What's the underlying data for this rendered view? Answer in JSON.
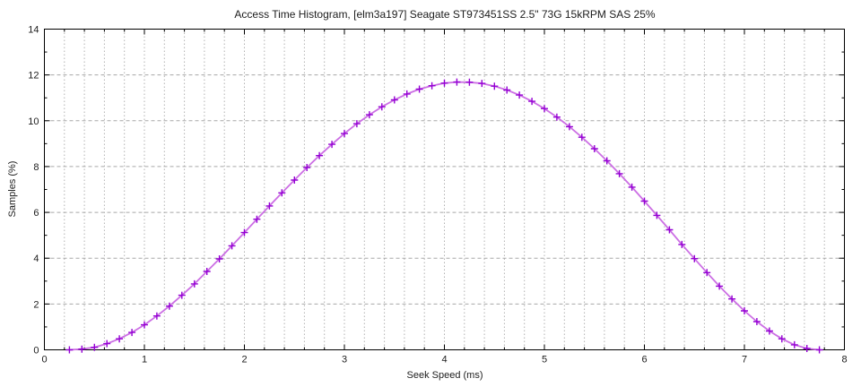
{
  "chart_data": {
    "type": "line",
    "style": "linespoints",
    "title": "Access Time Histogram, [elm3a197] Seagate ST973451SS 2.5\" 73G 15kRPM SAS 25%",
    "xlabel": "Seek Speed (ms)",
    "ylabel": "Samples (%)",
    "xlim": [
      0,
      8
    ],
    "ylim": [
      0,
      14
    ],
    "x_major_ticks": [
      0,
      1,
      2,
      3,
      4,
      5,
      6,
      7,
      8
    ],
    "y_major_ticks": [
      0,
      2,
      4,
      6,
      8,
      10,
      12,
      14
    ],
    "x_minor_step": 0.2,
    "y_minor_step": 1,
    "grid": {
      "vertical_at_x_minor": true,
      "horizontal_at_y_major": true,
      "vertical_color": "#b2b2b2",
      "horizontal_color": "#a8a8a8"
    },
    "legend": null,
    "colors": {
      "frame": "#000000",
      "line": "#cc6fe4",
      "marker": "#9400d3",
      "text": "#1c1c1c",
      "background": "#ffffff"
    },
    "series": [
      {
        "name": "access-time-histogram",
        "marker": "plus",
        "points": [
          [
            0.25,
            0
          ],
          [
            0.375,
            0.03
          ],
          [
            0.5,
            0.11
          ],
          [
            0.625,
            0.27
          ],
          [
            0.75,
            0.48
          ],
          [
            0.875,
            0.76
          ],
          [
            1,
            1.09
          ],
          [
            1.125,
            1.48
          ],
          [
            1.25,
            1.91
          ],
          [
            1.375,
            2.38
          ],
          [
            1.5,
            2.88
          ],
          [
            1.625,
            3.42
          ],
          [
            1.75,
            3.97
          ],
          [
            1.875,
            4.54
          ],
          [
            2,
            5.12
          ],
          [
            2.125,
            5.7
          ],
          [
            2.25,
            6.28
          ],
          [
            2.375,
            6.85
          ],
          [
            2.5,
            7.41
          ],
          [
            2.625,
            7.96
          ],
          [
            2.75,
            8.48
          ],
          [
            2.875,
            8.97
          ],
          [
            3,
            9.44
          ],
          [
            3.125,
            9.87
          ],
          [
            3.25,
            10.26
          ],
          [
            3.375,
            10.61
          ],
          [
            3.5,
            10.91
          ],
          [
            3.625,
            11.17
          ],
          [
            3.75,
            11.38
          ],
          [
            3.875,
            11.53
          ],
          [
            4,
            11.64
          ],
          [
            4.125,
            11.69
          ],
          [
            4.25,
            11.68
          ],
          [
            4.375,
            11.63
          ],
          [
            4.5,
            11.51
          ],
          [
            4.625,
            11.34
          ],
          [
            4.75,
            11.12
          ],
          [
            4.875,
            10.85
          ],
          [
            5,
            10.53
          ],
          [
            5.125,
            10.16
          ],
          [
            5.25,
            9.74
          ],
          [
            5.375,
            9.28
          ],
          [
            5.5,
            8.78
          ],
          [
            5.625,
            8.25
          ],
          [
            5.75,
            7.69
          ],
          [
            5.875,
            7.1
          ],
          [
            6,
            6.49
          ],
          [
            6.125,
            5.87
          ],
          [
            6.25,
            5.24
          ],
          [
            6.375,
            4.6
          ],
          [
            6.5,
            3.98
          ],
          [
            6.625,
            3.37
          ],
          [
            6.75,
            2.78
          ],
          [
            6.875,
            2.22
          ],
          [
            7,
            1.7
          ],
          [
            7.125,
            1.23
          ],
          [
            7.25,
            0.82
          ],
          [
            7.375,
            0.48
          ],
          [
            7.5,
            0.22
          ],
          [
            7.625,
            0.06
          ],
          [
            7.75,
            0
          ]
        ]
      }
    ]
  }
}
